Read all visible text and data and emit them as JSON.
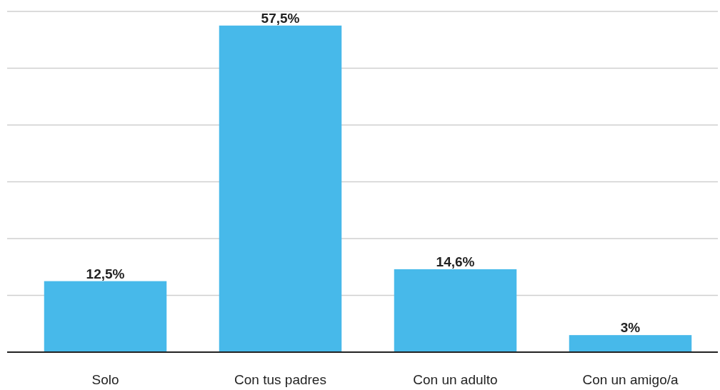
{
  "chart_data": {
    "type": "bar",
    "categories": [
      "Solo",
      "Con tus padres",
      "Con un adulto",
      "Con un amigo/a"
    ],
    "values": [
      12.5,
      57.5,
      14.6,
      3
    ],
    "value_labels": [
      "12,5%",
      "57,5%",
      "14,6%",
      "3%"
    ],
    "color": "#47b9ea",
    "ylim": [
      0,
      62
    ],
    "yticks": [
      {
        "value": 0,
        "label": null
      },
      {
        "value": 10,
        "label": null
      },
      {
        "value": 20,
        "label": null
      },
      {
        "value": 30,
        "label": null
      },
      {
        "value": 40,
        "label": null
      },
      {
        "value": 50,
        "label": null
      },
      {
        "value": 60,
        "label": null
      }
    ],
    "grid": "y",
    "tick_labels": "x"
  }
}
